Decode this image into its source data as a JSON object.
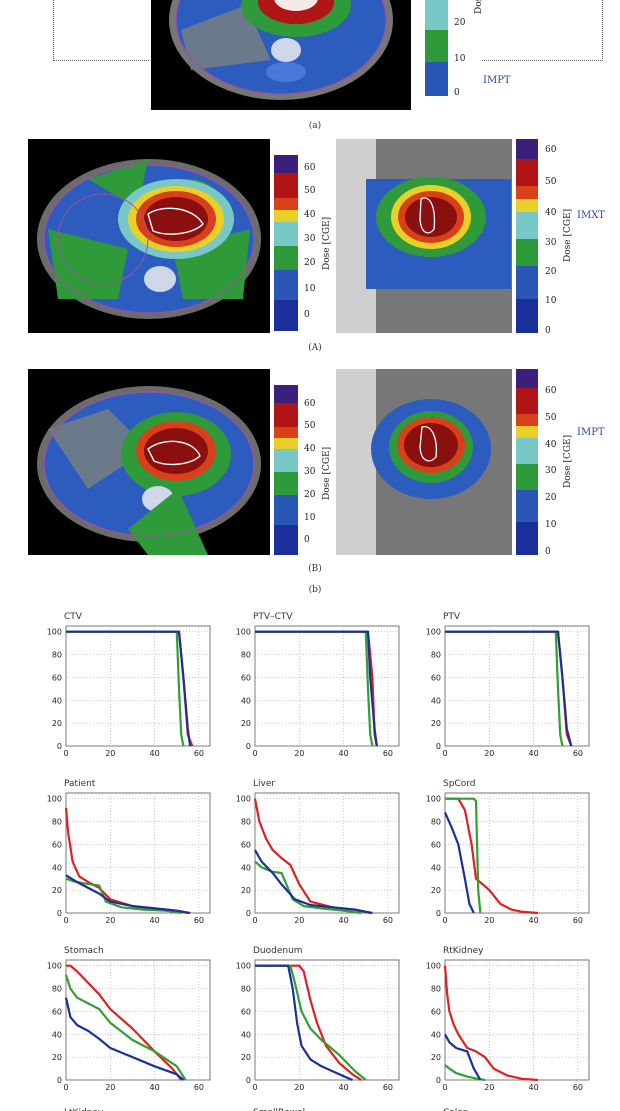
{
  "figure": {
    "top": {
      "caption": "(a)",
      "method": "IMPT",
      "dose_label": "Dose",
      "colorbar_ticks": [
        "20",
        "10",
        "0"
      ]
    },
    "panel_A": {
      "caption": "(A)",
      "method": "IMXT",
      "dose_label": "Dose [CGE]",
      "colorbar_ticks": [
        "60",
        "50",
        "40",
        "30",
        "20",
        "10",
        "0"
      ]
    },
    "panel_B": {
      "caption": "(B)",
      "method": "IMPT",
      "dose_label": "Dose [CGE]",
      "colorbar_ticks": [
        "60",
        "50",
        "40",
        "30",
        "20",
        "10",
        "0"
      ]
    },
    "caption_b": "(b)",
    "colorbar_colors": [
      "#3b1f7a",
      "#b01414",
      "#d8401a",
      "#e8d028",
      "#78c8c8",
      "#2e9a3a",
      "#2a56b8",
      "#1a2f9a"
    ]
  },
  "chart_data": [
    {
      "type": "line",
      "title": "CTV",
      "xlim": [
        0,
        65
      ],
      "ylim": [
        0,
        105
      ],
      "xticks": [
        "0",
        "20",
        "40",
        "60"
      ],
      "yticks": [
        "0",
        "20",
        "40",
        "60",
        "80",
        "100"
      ],
      "series": [
        {
          "name": "red",
          "color": "#e02020",
          "x": [
            0,
            48,
            51,
            53,
            55,
            57
          ],
          "y": [
            100,
            100,
            100,
            60,
            10,
            0
          ]
        },
        {
          "name": "green",
          "color": "#30a030",
          "x": [
            0,
            48,
            50,
            51,
            52,
            53
          ],
          "y": [
            100,
            100,
            100,
            50,
            10,
            0
          ]
        },
        {
          "name": "blue",
          "color": "#1a2f9a",
          "x": [
            0,
            48,
            51,
            53,
            55,
            56
          ],
          "y": [
            100,
            100,
            100,
            60,
            15,
            0
          ]
        }
      ]
    },
    {
      "type": "line",
      "title": "PTV–CTV",
      "xlim": [
        0,
        65
      ],
      "ylim": [
        0,
        105
      ],
      "xticks": [
        "0",
        "20",
        "40",
        "60"
      ],
      "yticks": [
        "0",
        "20",
        "40",
        "60",
        "80",
        "100"
      ],
      "series": [
        {
          "name": "red",
          "color": "#e02020",
          "x": [
            0,
            48,
            51,
            53,
            54,
            55
          ],
          "y": [
            100,
            100,
            100,
            60,
            10,
            0
          ]
        },
        {
          "name": "green",
          "color": "#30a030",
          "x": [
            0,
            48,
            50,
            51,
            52,
            53
          ],
          "y": [
            100,
            100,
            100,
            50,
            10,
            0
          ]
        },
        {
          "name": "blue",
          "color": "#1a2f9a",
          "x": [
            0,
            48,
            51,
            52,
            54,
            55
          ],
          "y": [
            100,
            100,
            100,
            60,
            15,
            0
          ]
        }
      ]
    },
    {
      "type": "line",
      "title": "PTV",
      "xlim": [
        0,
        65
      ],
      "ylim": [
        0,
        105
      ],
      "xticks": [
        "0",
        "20",
        "40",
        "60"
      ],
      "yticks": [
        "0",
        "20",
        "40",
        "60",
        "80",
        "100"
      ],
      "series": [
        {
          "name": "red",
          "color": "#e02020",
          "x": [
            0,
            48,
            51,
            53,
            55,
            57
          ],
          "y": [
            100,
            100,
            100,
            60,
            10,
            0
          ]
        },
        {
          "name": "green",
          "color": "#30a030",
          "x": [
            0,
            48,
            50,
            51,
            52,
            53
          ],
          "y": [
            100,
            100,
            100,
            50,
            10,
            0
          ]
        },
        {
          "name": "blue",
          "color": "#1a2f9a",
          "x": [
            0,
            48,
            51,
            53,
            55,
            57
          ],
          "y": [
            100,
            100,
            100,
            60,
            15,
            0
          ]
        }
      ]
    },
    {
      "type": "line",
      "title": "Patient",
      "xlim": [
        0,
        65
      ],
      "ylim": [
        0,
        105
      ],
      "xticks": [
        "0",
        "20",
        "40",
        "60"
      ],
      "yticks": [
        "0",
        "20",
        "40",
        "60",
        "80",
        "100"
      ],
      "series": [
        {
          "name": "red",
          "color": "#e02020",
          "x": [
            0,
            1,
            3,
            6,
            10,
            15,
            20,
            30,
            40,
            50,
            55
          ],
          "y": [
            92,
            70,
            45,
            32,
            27,
            22,
            12,
            6,
            4,
            2,
            0
          ]
        },
        {
          "name": "green",
          "color": "#30a030",
          "x": [
            0,
            3,
            8,
            15,
            18,
            25,
            35,
            45,
            52
          ],
          "y": [
            30,
            28,
            26,
            24,
            10,
            5,
            3,
            2,
            0
          ]
        },
        {
          "name": "blue",
          "color": "#1a2f9a",
          "x": [
            0,
            5,
            10,
            15,
            20,
            30,
            40,
            50,
            56
          ],
          "y": [
            33,
            27,
            22,
            17,
            10,
            6,
            4,
            2,
            0
          ]
        }
      ]
    },
    {
      "type": "line",
      "title": "Liver",
      "xlim": [
        0,
        65
      ],
      "ylim": [
        0,
        105
      ],
      "xticks": [
        "0",
        "20",
        "40",
        "60"
      ],
      "yticks": [
        "0",
        "20",
        "40",
        "60",
        "80",
        "100"
      ],
      "series": [
        {
          "name": "red",
          "color": "#e02020",
          "x": [
            0,
            2,
            5,
            8,
            12,
            16,
            20,
            25,
            35,
            45,
            52
          ],
          "y": [
            100,
            80,
            65,
            55,
            48,
            42,
            25,
            10,
            5,
            3,
            0
          ]
        },
        {
          "name": "green",
          "color": "#30a030",
          "x": [
            0,
            3,
            8,
            12,
            17,
            22,
            30,
            40,
            48
          ],
          "y": [
            45,
            40,
            36,
            35,
            12,
            6,
            4,
            2,
            0
          ]
        },
        {
          "name": "blue",
          "color": "#1a2f9a",
          "x": [
            0,
            3,
            8,
            12,
            18,
            25,
            35,
            45,
            53
          ],
          "y": [
            55,
            45,
            35,
            25,
            12,
            7,
            5,
            3,
            0
          ]
        }
      ]
    },
    {
      "type": "line",
      "title": "SpCord",
      "xlim": [
        0,
        65
      ],
      "ylim": [
        0,
        105
      ],
      "xticks": [
        "0",
        "20",
        "40",
        "60"
      ],
      "yticks": [
        "0",
        "20",
        "40",
        "60",
        "80",
        "100"
      ],
      "series": [
        {
          "name": "red",
          "color": "#e02020",
          "x": [
            0,
            6,
            9,
            12,
            14,
            17,
            20,
            25,
            30,
            35,
            42
          ],
          "y": [
            100,
            100,
            90,
            60,
            30,
            25,
            20,
            8,
            3,
            1,
            0
          ]
        },
        {
          "name": "green",
          "color": "#30a030",
          "x": [
            0,
            13,
            14,
            15,
            16
          ],
          "y": [
            100,
            100,
            98,
            20,
            0
          ]
        },
        {
          "name": "blue",
          "color": "#1a2f9a",
          "x": [
            0,
            3,
            6,
            9,
            11,
            13
          ],
          "y": [
            88,
            75,
            60,
            30,
            8,
            0
          ]
        }
      ]
    },
    {
      "type": "line",
      "title": "Stomach",
      "xlim": [
        0,
        65
      ],
      "ylim": [
        0,
        105
      ],
      "xticks": [
        "0",
        "20",
        "40",
        "60"
      ],
      "yticks": [
        "0",
        "20",
        "40",
        "60",
        "80",
        "100"
      ],
      "series": [
        {
          "name": "red",
          "color": "#e02020",
          "x": [
            0,
            2,
            5,
            10,
            15,
            20,
            30,
            40,
            48,
            52
          ],
          "y": [
            100,
            100,
            95,
            85,
            75,
            62,
            45,
            25,
            10,
            0
          ]
        },
        {
          "name": "green",
          "color": "#30a030",
          "x": [
            0,
            2,
            5,
            10,
            15,
            20,
            30,
            40,
            50,
            54
          ],
          "y": [
            92,
            80,
            72,
            67,
            62,
            50,
            35,
            25,
            12,
            0
          ]
        },
        {
          "name": "blue",
          "color": "#1a2f9a",
          "x": [
            0,
            2,
            5,
            10,
            15,
            20,
            30,
            40,
            50,
            53
          ],
          "y": [
            72,
            55,
            48,
            43,
            36,
            28,
            20,
            12,
            5,
            0
          ]
        }
      ]
    },
    {
      "type": "line",
      "title": "Duodenum",
      "xlim": [
        0,
        65
      ],
      "ylim": [
        0,
        105
      ],
      "xticks": [
        "0",
        "20",
        "40",
        "60"
      ],
      "yticks": [
        "0",
        "20",
        "40",
        "60",
        "80",
        "100"
      ],
      "series": [
        {
          "name": "red",
          "color": "#e02020",
          "x": [
            0,
            20,
            22,
            25,
            28,
            32,
            38,
            44,
            48
          ],
          "y": [
            100,
            100,
            95,
            70,
            50,
            30,
            15,
            5,
            0
          ]
        },
        {
          "name": "green",
          "color": "#30a030",
          "x": [
            0,
            16,
            18,
            21,
            25,
            30,
            38,
            45,
            50
          ],
          "y": [
            100,
            100,
            85,
            60,
            45,
            35,
            22,
            8,
            0
          ]
        },
        {
          "name": "blue",
          "color": "#1a2f9a",
          "x": [
            0,
            15,
            17,
            19,
            21,
            25,
            30,
            38,
            44
          ],
          "y": [
            100,
            100,
            80,
            50,
            30,
            18,
            12,
            5,
            0
          ]
        }
      ]
    },
    {
      "type": "line",
      "title": "RtKidney",
      "xlim": [
        0,
        65
      ],
      "ylim": [
        0,
        105
      ],
      "xticks": [
        "0",
        "20",
        "40",
        "60"
      ],
      "yticks": [
        "0",
        "20",
        "40",
        "60",
        "80",
        "100"
      ],
      "series": [
        {
          "name": "red",
          "color": "#e02020",
          "x": [
            0,
            1,
            2,
            4,
            6,
            10,
            14,
            18,
            22,
            28,
            35,
            42
          ],
          "y": [
            100,
            75,
            60,
            48,
            40,
            28,
            25,
            20,
            10,
            4,
            1,
            0
          ]
        },
        {
          "name": "green",
          "color": "#30a030",
          "x": [
            0,
            2,
            5,
            10,
            15,
            18
          ],
          "y": [
            13,
            10,
            6,
            3,
            1,
            0
          ]
        },
        {
          "name": "blue",
          "color": "#1a2f9a",
          "x": [
            0,
            2,
            5,
            10,
            13,
            16
          ],
          "y": [
            40,
            33,
            28,
            25,
            10,
            0
          ]
        }
      ]
    }
  ],
  "bottom_partial_titles": [
    "LtKidney",
    "SmallBowel",
    "Colon"
  ]
}
